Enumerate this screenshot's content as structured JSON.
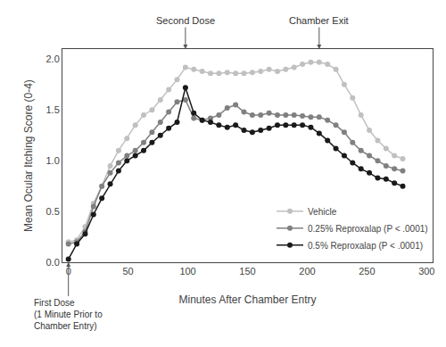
{
  "chart_data": {
    "type": "line",
    "x": [
      0,
      7,
      14,
      21,
      28,
      35,
      42,
      49,
      56,
      63,
      70,
      77,
      84,
      91,
      98,
      105,
      112,
      119,
      126,
      133,
      140,
      147,
      154,
      161,
      168,
      175,
      182,
      189,
      196,
      203,
      210,
      217,
      224,
      231,
      238,
      245,
      252,
      259,
      266,
      273,
      280
    ],
    "series": [
      {
        "name": "Vehicle",
        "color": "#c0c0c0",
        "marker": "circle",
        "line_style": "solid",
        "values": [
          0.2,
          0.22,
          0.35,
          0.58,
          0.75,
          0.95,
          1.1,
          1.22,
          1.35,
          1.45,
          1.5,
          1.6,
          1.7,
          1.8,
          1.92,
          1.9,
          1.88,
          1.86,
          1.86,
          1.87,
          1.86,
          1.86,
          1.87,
          1.88,
          1.9,
          1.88,
          1.9,
          1.92,
          1.95,
          1.97,
          1.97,
          1.95,
          1.9,
          1.75,
          1.62,
          1.45,
          1.3,
          1.2,
          1.12,
          1.05,
          1.02
        ]
      },
      {
        "name": "0.25% Reproxalap (P < .0001)",
        "color": "#808080",
        "marker": "circle",
        "line_style": "solid",
        "values": [
          0.18,
          0.2,
          0.3,
          0.55,
          0.75,
          0.88,
          0.98,
          1.05,
          1.1,
          1.18,
          1.28,
          1.38,
          1.48,
          1.58,
          1.6,
          1.42,
          1.4,
          1.42,
          1.45,
          1.52,
          1.55,
          1.48,
          1.45,
          1.45,
          1.47,
          1.45,
          1.45,
          1.45,
          1.44,
          1.43,
          1.43,
          1.4,
          1.35,
          1.28,
          1.18,
          1.1,
          1.05,
          1.0,
          0.95,
          0.92,
          0.9
        ]
      },
      {
        "name": "0.5% Reproxalap (P < .0001)",
        "color": "#1a1a1a",
        "marker": "circle",
        "line_style": "solid",
        "values": [
          0.03,
          0.18,
          0.28,
          0.47,
          0.63,
          0.77,
          0.9,
          1.0,
          1.05,
          1.1,
          1.18,
          1.25,
          1.32,
          1.38,
          1.72,
          1.47,
          1.4,
          1.38,
          1.35,
          1.33,
          1.35,
          1.3,
          1.28,
          1.3,
          1.32,
          1.35,
          1.35,
          1.35,
          1.35,
          1.33,
          1.27,
          1.2,
          1.12,
          1.05,
          0.98,
          0.92,
          0.88,
          0.83,
          0.82,
          0.78,
          0.75
        ]
      }
    ],
    "xlabel": "Minutes After Chamber Entry",
    "ylabel": "Mean Ocular Itching Score (0-4)",
    "xlim": [
      -5,
      305
    ],
    "ylim": [
      0,
      2.1
    ],
    "xticks": [
      0,
      50,
      100,
      150,
      200,
      250,
      300
    ],
    "yticks": [
      {
        "value": 0,
        "label": "0.0"
      },
      0.5,
      {
        "value": 1.0,
        "label": "1.0"
      },
      1.5,
      {
        "value": 2.0,
        "label": "2.0"
      }
    ],
    "annotations": [
      {
        "text": "Second Dose",
        "x": 98
      },
      {
        "text": "Chamber Exit",
        "x": 210
      },
      {
        "text": "First Dose\n(1 Minute Prior to\nChamber Entry)",
        "x": 0,
        "y": 0
      }
    ],
    "legend": "lower right",
    "grid": false
  }
}
